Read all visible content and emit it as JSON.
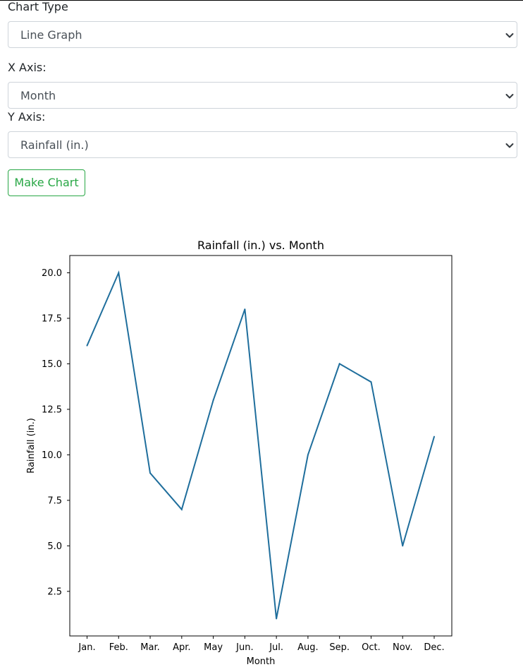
{
  "form": {
    "chart_type": {
      "label": "Chart Type",
      "value": "Line Graph"
    },
    "x_axis": {
      "label": "X Axis:",
      "value": "Month"
    },
    "y_axis": {
      "label": "Y Axis:",
      "value": "Rainfall (in.)"
    },
    "make_chart_label": "Make Chart"
  },
  "chart_data": {
    "type": "line",
    "title": "Rainfall (in.) vs. Month",
    "xlabel": "Month",
    "ylabel": "Rainfall (in.)",
    "categories": [
      "Jan.",
      "Feb.",
      "Mar.",
      "Apr.",
      "May",
      "Jun.",
      "Jul.",
      "Aug.",
      "Sep.",
      "Oct.",
      "Nov.",
      "Dec."
    ],
    "values": [
      16,
      20,
      9,
      7,
      13,
      18,
      1,
      10,
      15,
      14,
      5,
      11
    ],
    "yticks": [
      "2.5",
      "5.0",
      "7.5",
      "10.0",
      "12.5",
      "15.0",
      "17.5",
      "20.0"
    ],
    "ylim": [
      0.05,
      20.95
    ],
    "line_color": "#1f6e9c",
    "grid": false
  }
}
